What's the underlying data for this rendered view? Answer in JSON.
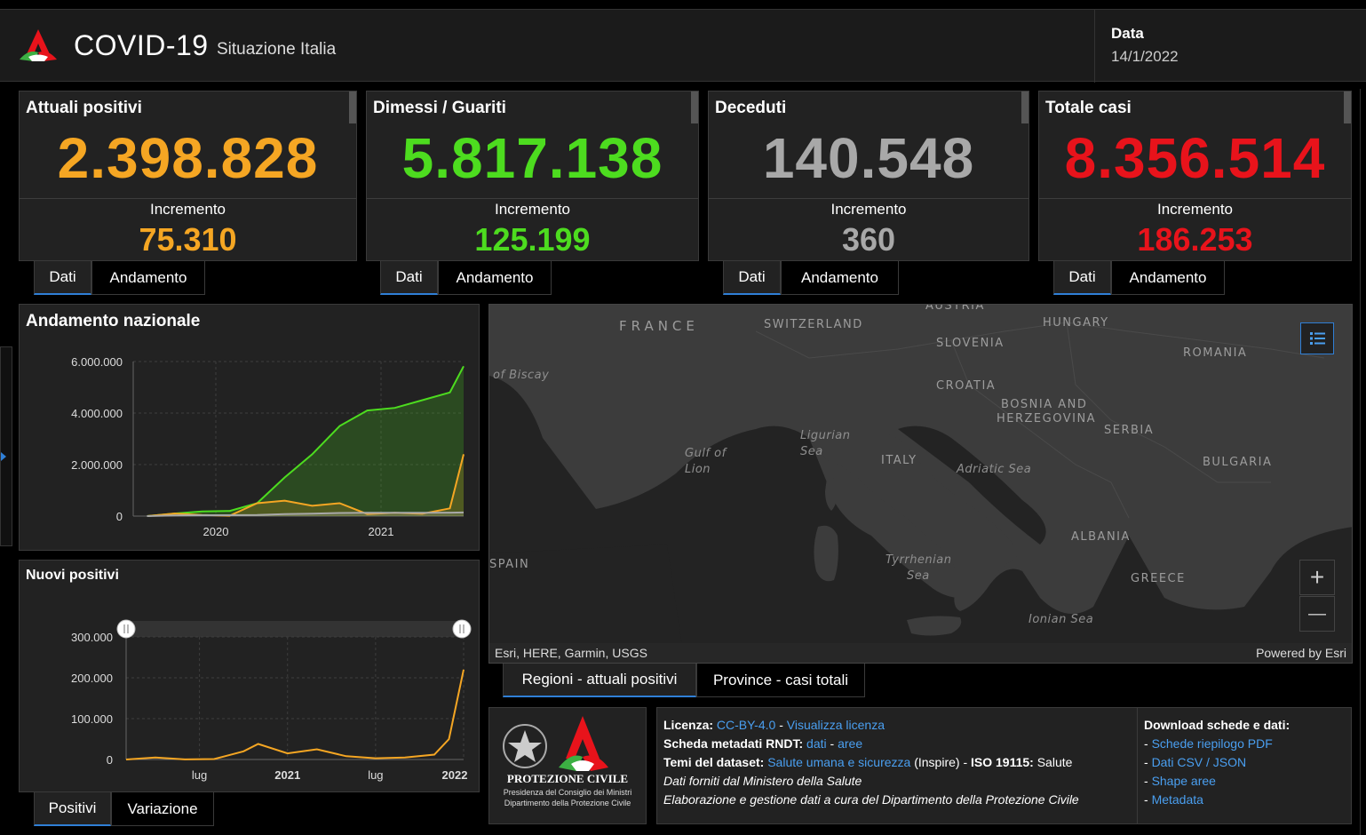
{
  "header": {
    "title": "COVID-19",
    "subtitle": "Situazione Italia",
    "date_label": "Data",
    "date_value": "14/1/2022"
  },
  "kpis": [
    {
      "title": "Attuali positivi",
      "value": "2.398.828",
      "inc_label": "Incremento",
      "inc_value": "75.310",
      "color": "#f5a623"
    },
    {
      "title": "Dimessi / Guariti",
      "value": "5.817.138",
      "inc_label": "Incremento",
      "inc_value": "125.199",
      "color": "#4ddc1f"
    },
    {
      "title": "Deceduti",
      "value": "140.548",
      "inc_label": "Incremento",
      "inc_value": "360",
      "color": "#a8a8a8"
    },
    {
      "title": "Totale casi",
      "value": "8.356.514",
      "inc_label": "Incremento",
      "inc_value": "186.253",
      "color": "#e8131b"
    }
  ],
  "kpi_tabs": [
    "Dati",
    "Andamento"
  ],
  "national_chart": {
    "title": "Andamento nazionale",
    "y_ticks": [
      "6.000.000",
      "4.000.000",
      "2.000.000",
      "0"
    ],
    "x_ticks": [
      "2020",
      "2021"
    ]
  },
  "new_positive_chart": {
    "title": "Nuovi positivi",
    "y_ticks": [
      "300.000",
      "200.000",
      "100.000",
      "0"
    ],
    "x_ticks": [
      "lug",
      "2021",
      "lug",
      "2022"
    ]
  },
  "chart_tabs": [
    "Positivi",
    "Variazione"
  ],
  "chart_data": [
    {
      "type": "area",
      "title": "Andamento nazionale",
      "x": [
        "2020-02",
        "2020-04",
        "2020-06",
        "2020-08",
        "2020-10",
        "2020-12",
        "2021-02",
        "2021-04",
        "2021-06",
        "2021-08",
        "2021-10",
        "2021-12",
        "2022-01"
      ],
      "series": [
        {
          "values": [
            0,
            100000,
            180000,
            200000,
            500000,
            1500000,
            2400000,
            3500000,
            4100000,
            4200000,
            4500000,
            4800000,
            5817138
          ]
        },
        {
          "values": [
            0,
            100000,
            40000,
            15000,
            500000,
            600000,
            400000,
            500000,
            80000,
            130000,
            90000,
            300000,
            2398828
          ]
        },
        {
          "values": [
            0,
            25000,
            34000,
            35000,
            40000,
            75000,
            95000,
            120000,
            127000,
            129000,
            132000,
            136000,
            140548
          ]
        }
      ],
      "ylim": [
        0,
        6000000
      ]
    },
    {
      "type": "line",
      "title": "Nuovi positivi",
      "x": [
        "2020-02",
        "2020-04",
        "2020-06",
        "2020-08",
        "2020-10",
        "2020-11",
        "2021-01",
        "2021-03",
        "2021-05",
        "2021-07",
        "2021-09",
        "2021-11",
        "2021-12",
        "2022-01"
      ],
      "series": [
        {
          "values": [
            0,
            5000,
            300,
            1000,
            20000,
            38000,
            15000,
            25000,
            8000,
            3000,
            5000,
            12000,
            50000,
            220000
          ]
        }
      ],
      "ylim": [
        0,
        300000
      ]
    }
  ],
  "map": {
    "labels": {
      "france": "FRANCE",
      "switzerland": "SWITZERLAND",
      "austria": "AUSTRIA",
      "hungary": "HUNGARY",
      "slovenia": "SLOVENIA",
      "romania": "ROMANIA",
      "croatia": "CROATIA",
      "bosnia1": "BOSNIA AND",
      "bosnia2": "HERZEGOVINA",
      "serbia": "SERBIA",
      "italy": "ITALY",
      "bulgaria": "BULGARIA",
      "albania": "ALBANIA",
      "spain": "SPAIN",
      "greece": "GREECE",
      "biscay": "of Biscay",
      "lion1": "Gulf of",
      "lion2": "Lion",
      "ligurian1": "Ligurian",
      "ligurian2": "Sea",
      "adriatic": "Adriatic Sea",
      "tyrrhenian1": "Tyrrhenian",
      "tyrrhenian2": "Sea",
      "ionian": "Ionian Sea"
    },
    "attribution_left": "Esri, HERE, Garmin, USGS",
    "attribution_right": "Powered by Esri",
    "zoom_in": "+",
    "zoom_out": "—"
  },
  "map_tabs": [
    "Regioni - attuali positivi",
    "Province - casi totali"
  ],
  "info": {
    "logo_text": "PROTEZIONE CIVILE",
    "logo_sub1": "Presidenza del Consiglio dei Ministri",
    "logo_sub2": "Dipartimento della Protezione Civile",
    "licenza_label": "Licenza:",
    "licenza_link": "CC-BY-4.0",
    "licenza_sep": " - ",
    "licenza_view": "Visualizza licenza",
    "scheda_label": "Scheda metadati RNDT:",
    "scheda_dati": "dati",
    "scheda_sep": " - ",
    "scheda_aree": "aree",
    "temi_label": "Temi del dataset:",
    "temi_link": "Salute umana e sicurezza",
    "temi_inspire": "(Inspire) - ",
    "iso_label": "ISO 19115:",
    "iso_value": " Salute",
    "line4": "Dati forniti dal Ministero della Salute",
    "line5": "Elaborazione e gestione dati a cura del Dipartimento della Protezione Civile"
  },
  "downloads": {
    "title": "Download schede e dati:",
    "dash": "- ",
    "items": [
      "Schede riepilogo PDF",
      "Dati CSV / JSON",
      "Shape aree",
      "Metadata"
    ]
  }
}
